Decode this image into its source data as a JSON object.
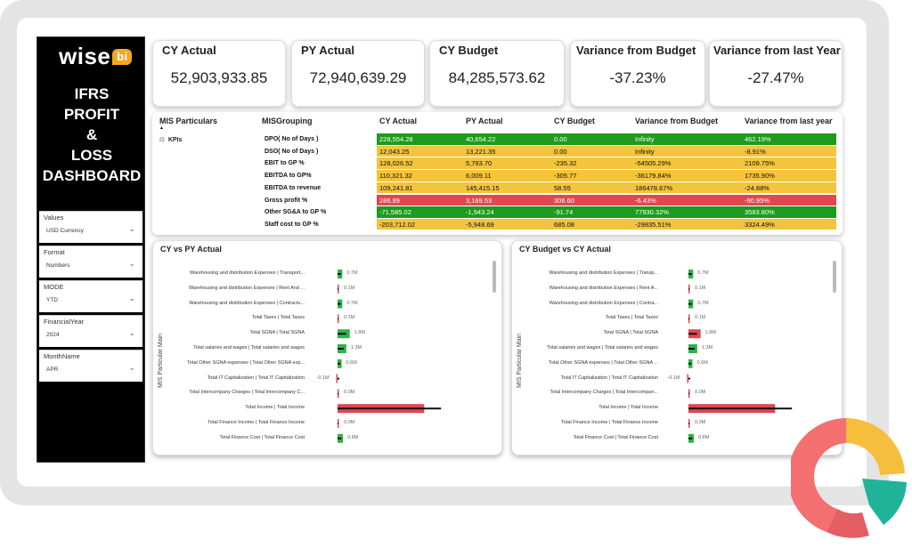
{
  "sidebar": {
    "logo_text": "wise",
    "logo_badge": "bi",
    "title_lines": [
      "IFRS",
      "PROFIT",
      "&",
      "LOSS",
      "DASHBOARD"
    ],
    "slicers": [
      {
        "label": "Values",
        "value": "USD Currency"
      },
      {
        "label": "Format",
        "value": "Numbers"
      },
      {
        "label": "MODE",
        "value": "YTD"
      },
      {
        "label": "FinancialYear",
        "value": "2024"
      },
      {
        "label": "MonthName",
        "value": "APR"
      }
    ]
  },
  "kpis": [
    {
      "title": "CY Actual",
      "value": "52,903,933.85"
    },
    {
      "title": "PY Actual",
      "value": "72,940,639.29"
    },
    {
      "title": "CY Budget",
      "value": "84,285,573.62"
    },
    {
      "title": "Variance from Budget",
      "value": "-37.23%"
    },
    {
      "title": "Variance from last Year",
      "value": "-27.47%"
    }
  ],
  "table": {
    "headers": [
      "MIS Particulars",
      "MISGrouping",
      "CY Actual",
      "PY Actual",
      "CY Budget",
      "Variance from Budget",
      "Variance from last year"
    ],
    "group_label": "KPIs",
    "rows": [
      {
        "grouping": "DPO( No of Days )",
        "cy": "228,554.28",
        "py": "40,654.22",
        "budget": "0.00",
        "var_budget": "Infinity",
        "var_ly": "462.19%",
        "color": "#1d9b1d"
      },
      {
        "grouping": "DSO( No of Days )",
        "cy": "12,043.25",
        "py": "13,221.35",
        "budget": "0.00",
        "var_budget": "Infinity",
        "var_ly": "-8.91%",
        "color": "#f3c43c"
      },
      {
        "grouping": "EBIT to GP %",
        "cy": "128,026.52",
        "py": "5,793.70",
        "budget": "-235.32",
        "var_budget": "-54505.29%",
        "var_ly": "2109.75%",
        "color": "#f3c43c"
      },
      {
        "grouping": "EBITDA to GP%",
        "cy": "110,321.32",
        "py": "6,009.11",
        "budget": "-305.77",
        "var_budget": "-36179.84%",
        "var_ly": "1735.90%",
        "color": "#f3c43c"
      },
      {
        "grouping": "EBITDA to revenue",
        "cy": "109,241.81",
        "py": "145,415.15",
        "budget": "58.55",
        "var_budget": "186478.67%",
        "var_ly": "-24.88%",
        "color": "#f3c43c"
      },
      {
        "grouping": "Gross profit %",
        "cy": "286.89",
        "py": "3,169.53",
        "budget": "306.60",
        "var_budget": "-6.43%",
        "var_ly": "-90.95%",
        "color": "#e0474f"
      },
      {
        "grouping": "Other SG&A to GP %",
        "cy": "-71,585.02",
        "py": "-1,943.24",
        "budget": "-91.74",
        "var_budget": "77930.32%",
        "var_ly": "3583.80%",
        "color": "#1d9b1d"
      },
      {
        "grouping": "Staff cost to GP %",
        "cy": "-203,712.02",
        "py": "-5,948.69",
        "budget": "685.08",
        "var_budget": "-29835.51%",
        "var_ly": "3324.49%",
        "color": "#f3c43c"
      }
    ]
  },
  "chart_left": {
    "title": "CY vs PY Actual",
    "axis_title": "MIS Particular Main",
    "chart_data": {
      "type": "bar",
      "categories": [
        "Warehousing and distribution Expenses | Transport...",
        "Warehousing and distribution Expenses | Rent And ...",
        "Warehousing and distribution Expenses | Contractu...",
        "Total Taxes | Total Taxes",
        "Total SGNA | Total SGNA",
        "Total salaries and wages | Total salaries and wages",
        "Total Other SGNA expenses | Total Other SGNA exp...",
        "Total IT Capitalization | Total IT Capitalization",
        "Total Intercompany Charges | Total Intercompany C...",
        "Total Income | Total Income",
        "Total Finance Income | Total Finance Income",
        "Total Finance Cost | Total Finance Cost"
      ],
      "labels": [
        "0.7M",
        "0.1M",
        "0.7M",
        "0.1M",
        "1.8M",
        "1.3M",
        "0.6M",
        "-0.1M",
        "0.0M",
        "",
        "0.0M",
        "0.8M"
      ],
      "values": [
        0.7,
        0.1,
        0.7,
        0.1,
        1.8,
        1.3,
        0.6,
        -0.1,
        0.0,
        12.8,
        0.0,
        0.8
      ],
      "colors": [
        "#2db34a",
        "#e0474f",
        "#2db34a",
        "#e0474f",
        "#2db34a",
        "#2db34a",
        "#2db34a",
        "#e0474f",
        "#e0474f",
        "#e0474f",
        "#e0474f",
        "#2db34a"
      ]
    }
  },
  "chart_right": {
    "title": "CY Budget vs CY Actual",
    "axis_title": "MIS Particular Main",
    "chart_data": {
      "type": "bar",
      "categories": [
        "Warehousing and distribution Expenses | Transp...",
        "Warehousing and distribution Expenses | Rent A...",
        "Warehousing and distribution Expenses | Contra...",
        "Total Taxes | Total Taxes",
        "Total SGNA | Total SGNA",
        "Total salaries and wages | Total salaries and wages",
        "Total Other SGNA expenses | Total Other SGNA ...",
        "Total IT Capitalization | Total IT Capitalization",
        "Total Intercompany Charges | Total Intercompan...",
        "Total Income | Total Income",
        "Total Finance Income | Total Finance Income",
        "Total Finance Cost | Total Finance Cost"
      ],
      "labels": [
        "0.7M",
        "0.1M",
        "0.7M",
        "0.1M",
        "1.8M",
        "1.3M",
        "0.6M",
        "-0.1M",
        "0.0M",
        "",
        "0.0M",
        "0.8M"
      ],
      "values": [
        0.7,
        0.1,
        0.7,
        0.1,
        1.8,
        1.3,
        0.6,
        -0.1,
        0.0,
        12.8,
        0.0,
        0.8
      ],
      "colors": [
        "#2db34a",
        "#e0474f",
        "#2db34a",
        "#e0474f",
        "#e0474f",
        "#2db34a",
        "#2db34a",
        "#e0474f",
        "#e0474f",
        "#e0474f",
        "#e0474f",
        "#2db34a"
      ]
    }
  }
}
